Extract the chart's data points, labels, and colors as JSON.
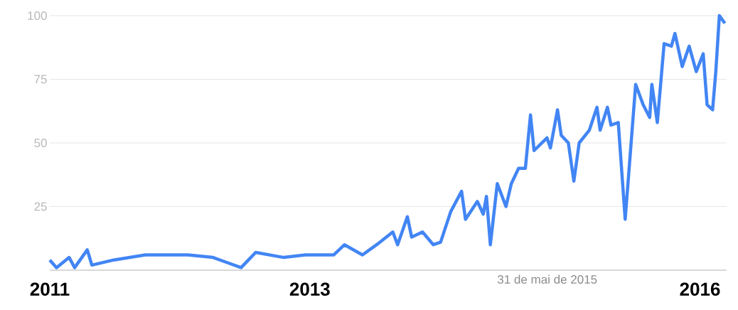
{
  "chart_data": {
    "type": "line",
    "x": [
      "2011-01-01",
      "2011-01-20",
      "2011-02-25",
      "2011-03-10",
      "2011-04-15",
      "2011-04-28",
      "2011-06-28",
      "2011-09-26",
      "2012-01-24",
      "2012-04-03",
      "2012-05-12",
      "2012-06-21",
      "2012-08-01",
      "2012-10-19",
      "2012-12-19",
      "2013-03-07",
      "2013-04-07",
      "2013-05-27",
      "2013-07-06",
      "2013-08-21",
      "2013-09-04",
      "2013-10-01",
      "2013-10-13",
      "2013-11-13",
      "2013-12-13",
      "2014-01-03",
      "2014-02-01",
      "2014-03-01",
      "2014-03-12",
      "2014-04-15",
      "2014-05-01",
      "2014-05-10",
      "2014-05-21",
      "2014-06-10",
      "2014-07-04",
      "2014-07-19",
      "2014-08-09",
      "2014-08-28",
      "2014-09-12",
      "2014-09-22",
      "2014-10-28",
      "2014-11-07",
      "2014-11-27",
      "2014-12-07",
      "2014-12-27",
      "2015-01-12",
      "2015-01-27",
      "2015-02-25",
      "2015-03-16",
      "2015-03-25",
      "2015-04-15",
      "2015-04-25",
      "2015-05-15",
      "2015-06-04",
      "2015-06-19",
      "2015-07-03",
      "2015-07-24",
      "2015-08-12",
      "2015-08-18",
      "2015-09-03",
      "2015-09-22",
      "2015-10-12",
      "2015-10-22",
      "2015-11-12",
      "2015-12-01",
      "2015-12-21",
      "2016-01-10",
      "2016-01-21",
      "2016-02-06",
      "2016-02-15",
      "2016-02-25",
      "2016-03-10"
    ],
    "series": [
      {
        "color": "#4285f4",
        "values": [
          4,
          1,
          5,
          1,
          8,
          2,
          4,
          6,
          6,
          5,
          3,
          1,
          7,
          5,
          6,
          6,
          10,
          6,
          10,
          15,
          10,
          21,
          13,
          15,
          10,
          11,
          23,
          31,
          20,
          27,
          22,
          29,
          10,
          34,
          25,
          34,
          40,
          40,
          61,
          47,
          52,
          48,
          63,
          53,
          50,
          35,
          50,
          55,
          64,
          55,
          64,
          57,
          58,
          20,
          47,
          73,
          65,
          60,
          73,
          58,
          89,
          88,
          93,
          80,
          88,
          78,
          85,
          65,
          63,
          78,
          100,
          97
        ]
      }
    ],
    "xlim": [
      "2011-01-01",
      "2016-03-15"
    ],
    "xticks": [
      {
        "value": "2011-01-01",
        "label": "2011"
      },
      {
        "value": "2013-01-01",
        "label": "2013"
      },
      {
        "value": "2016-01-01",
        "label": "2016"
      }
    ],
    "ylim": [
      0,
      100
    ],
    "yticks": [
      {
        "value": 0,
        "label": null
      },
      25,
      50,
      75,
      100
    ],
    "grid": "y",
    "annotations": [
      "31 de mai de 2015"
    ]
  }
}
